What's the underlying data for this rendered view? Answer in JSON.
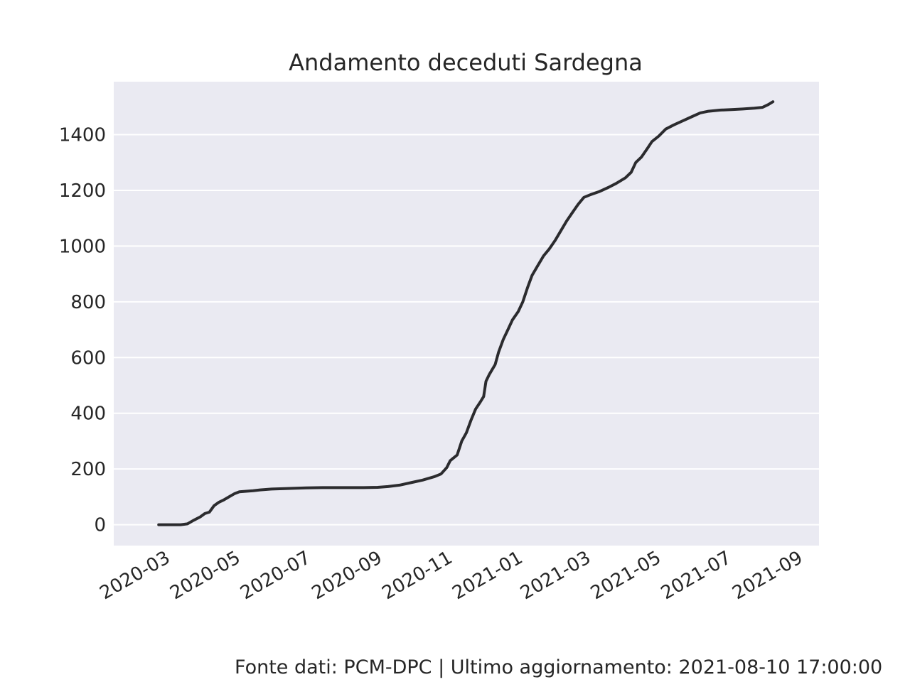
{
  "footer": "Fonte dati: PCM-DPC | Ultimo aggiornamento: 2021-08-10 17:00:00",
  "chart_data": {
    "type": "line",
    "title": "Andamento deceduti Sardegna",
    "xlabel": "",
    "ylabel": "",
    "grid": true,
    "background": "#eaeaf2",
    "line_color": "#2b2b2e",
    "xlim": [
      "2020-01-16",
      "2021-09-19"
    ],
    "ylim": [
      -75,
      1590
    ],
    "x_ticks": [
      "2020-03",
      "2020-05",
      "2020-07",
      "2020-09",
      "2020-11",
      "2021-01",
      "2021-03",
      "2021-05",
      "2021-07",
      "2021-09"
    ],
    "y_ticks": [
      0,
      200,
      400,
      600,
      800,
      1000,
      1200,
      1400
    ],
    "series": [
      {
        "points": [
          [
            "2020-02-24",
            0
          ],
          [
            "2020-03-05",
            0
          ],
          [
            "2020-03-14",
            0
          ],
          [
            "2020-03-20",
            3
          ],
          [
            "2020-03-25",
            15
          ],
          [
            "2020-03-31",
            28
          ],
          [
            "2020-04-04",
            40
          ],
          [
            "2020-04-08",
            45
          ],
          [
            "2020-04-12",
            68
          ],
          [
            "2020-04-16",
            80
          ],
          [
            "2020-04-20",
            88
          ],
          [
            "2020-04-25",
            100
          ],
          [
            "2020-04-30",
            112
          ],
          [
            "2020-05-04",
            118
          ],
          [
            "2020-05-10",
            120
          ],
          [
            "2020-05-16",
            122
          ],
          [
            "2020-05-22",
            125
          ],
          [
            "2020-06-01",
            128
          ],
          [
            "2020-06-15",
            130
          ],
          [
            "2020-07-01",
            132
          ],
          [
            "2020-07-15",
            133
          ],
          [
            "2020-08-01",
            133
          ],
          [
            "2020-08-20",
            133
          ],
          [
            "2020-09-01",
            134
          ],
          [
            "2020-09-10",
            137
          ],
          [
            "2020-09-20",
            142
          ],
          [
            "2020-10-01",
            152
          ],
          [
            "2020-10-10",
            160
          ],
          [
            "2020-10-20",
            172
          ],
          [
            "2020-10-26",
            182
          ],
          [
            "2020-10-31",
            205
          ],
          [
            "2020-11-03",
            230
          ],
          [
            "2020-11-09",
            250
          ],
          [
            "2020-11-13",
            300
          ],
          [
            "2020-11-17",
            330
          ],
          [
            "2020-11-21",
            375
          ],
          [
            "2020-11-25",
            415
          ],
          [
            "2020-11-29",
            440
          ],
          [
            "2020-12-02",
            460
          ],
          [
            "2020-12-04",
            515
          ],
          [
            "2020-12-07",
            540
          ],
          [
            "2020-12-12",
            575
          ],
          [
            "2020-12-15",
            620
          ],
          [
            "2020-12-19",
            665
          ],
          [
            "2020-12-23",
            700
          ],
          [
            "2020-12-27",
            735
          ],
          [
            "2021-01-01",
            765
          ],
          [
            "2021-01-05",
            800
          ],
          [
            "2021-01-09",
            850
          ],
          [
            "2021-01-13",
            895
          ],
          [
            "2021-01-18",
            930
          ],
          [
            "2021-01-23",
            965
          ],
          [
            "2021-01-28",
            990
          ],
          [
            "2021-02-02",
            1020
          ],
          [
            "2021-02-07",
            1055
          ],
          [
            "2021-02-12",
            1090
          ],
          [
            "2021-02-17",
            1120
          ],
          [
            "2021-02-22",
            1150
          ],
          [
            "2021-02-27",
            1175
          ],
          [
            "2021-03-05",
            1185
          ],
          [
            "2021-03-12",
            1195
          ],
          [
            "2021-03-20",
            1210
          ],
          [
            "2021-03-27",
            1225
          ],
          [
            "2021-04-04",
            1245
          ],
          [
            "2021-04-09",
            1265
          ],
          [
            "2021-04-13",
            1300
          ],
          [
            "2021-04-18",
            1320
          ],
          [
            "2021-04-23",
            1350
          ],
          [
            "2021-04-27",
            1375
          ],
          [
            "2021-05-03",
            1395
          ],
          [
            "2021-05-09",
            1420
          ],
          [
            "2021-05-16",
            1435
          ],
          [
            "2021-05-24",
            1450
          ],
          [
            "2021-06-01",
            1465
          ],
          [
            "2021-06-08",
            1478
          ],
          [
            "2021-06-15",
            1484
          ],
          [
            "2021-06-25",
            1488
          ],
          [
            "2021-07-05",
            1490
          ],
          [
            "2021-07-15",
            1492
          ],
          [
            "2021-07-25",
            1495
          ],
          [
            "2021-08-01",
            1498
          ],
          [
            "2021-08-06",
            1508
          ],
          [
            "2021-08-10",
            1518
          ]
        ]
      }
    ]
  }
}
